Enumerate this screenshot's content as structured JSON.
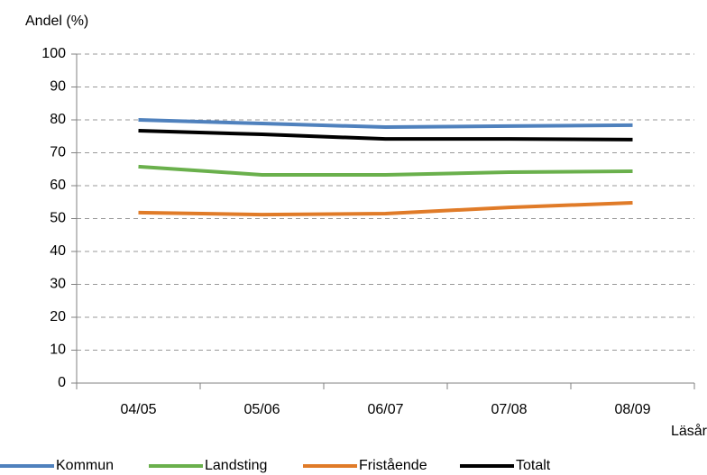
{
  "chart_data": {
    "type": "line",
    "y_label": "Andel (%)",
    "x_label": "Läsår",
    "categories": [
      "04/05",
      "05/06",
      "06/07",
      "07/08",
      "08/09"
    ],
    "series": [
      {
        "name": "Kommun",
        "color": "#4f81bd",
        "values": [
          80.0,
          78.9,
          77.8,
          78.1,
          78.4
        ]
      },
      {
        "name": "Landsting",
        "color": "#6ab04c",
        "values": [
          65.8,
          63.3,
          63.3,
          64.1,
          64.4
        ]
      },
      {
        "name": "Fristående",
        "color": "#e07b28",
        "values": [
          51.8,
          51.2,
          51.5,
          53.4,
          54.8
        ]
      },
      {
        "name": "Totalt",
        "color": "#000000",
        "values": [
          76.7,
          75.6,
          74.2,
          74.2,
          74.0
        ]
      }
    ],
    "ylim": [
      0,
      100
    ],
    "yticks": [
      0,
      10,
      20,
      30,
      40,
      50,
      60,
      70,
      80,
      90,
      100
    ],
    "grid": true
  }
}
